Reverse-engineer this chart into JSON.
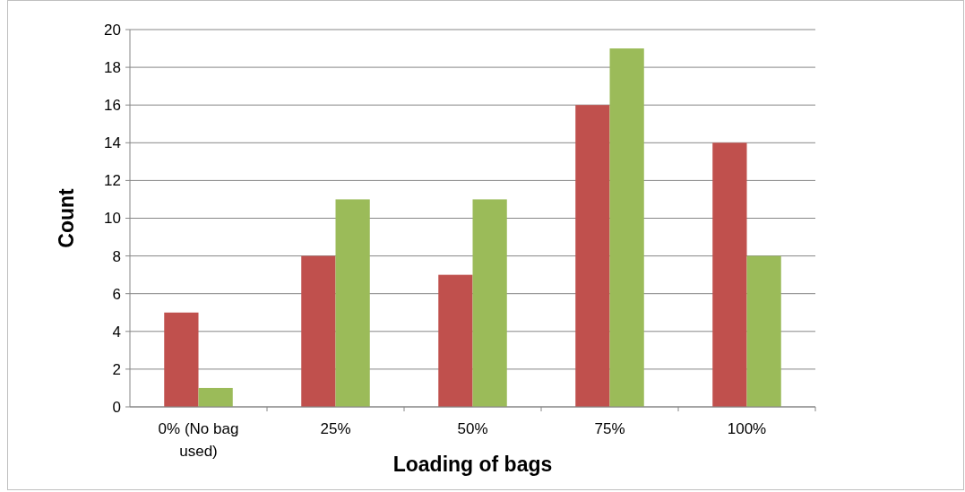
{
  "chart_data": {
    "type": "bar",
    "xlabel": "Loading of bags",
    "ylabel": "Count",
    "categories": [
      "0% (No bag used)",
      "25%",
      "50%",
      "75%",
      "100%"
    ],
    "series": [
      {
        "color": "#c0504d",
        "values": [
          5,
          8,
          7,
          16,
          14
        ]
      },
      {
        "color": "#9bbb59",
        "values": [
          1,
          11,
          11,
          19,
          8
        ]
      }
    ],
    "ylim": [
      0,
      20
    ],
    "yticks": [
      0,
      2,
      4,
      6,
      8,
      10,
      12,
      14,
      16,
      18,
      20
    ],
    "grid": "y"
  }
}
